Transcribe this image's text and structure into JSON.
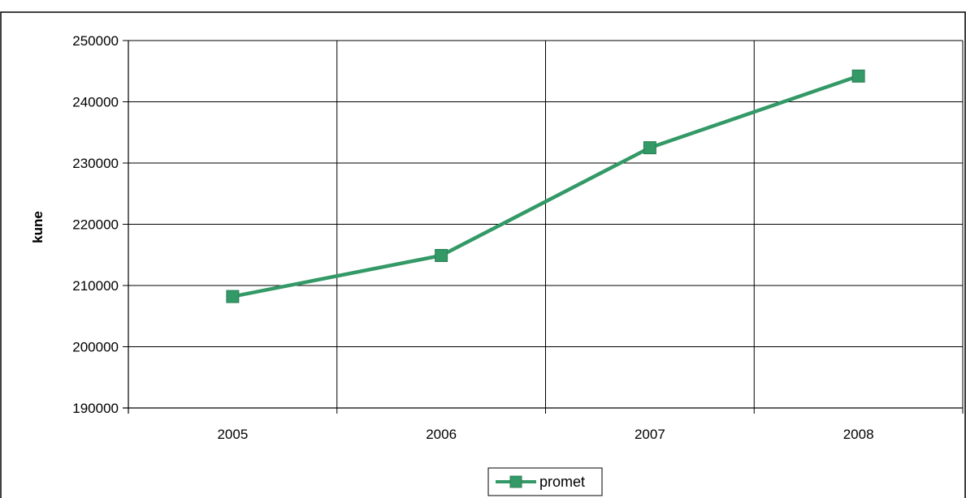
{
  "chart_data": {
    "type": "line",
    "categories": [
      "2005",
      "2006",
      "2007",
      "2008"
    ],
    "series": [
      {
        "name": "promet",
        "values": [
          208200,
          214900,
          232500,
          244200
        ],
        "color": "#339966"
      }
    ],
    "ylabel": "kune",
    "xlabel": "",
    "ylim": [
      190000,
      250000
    ],
    "yticks": [
      190000,
      200000,
      210000,
      220000,
      230000,
      240000,
      250000
    ],
    "grid": true,
    "legend_position": "bottom-center",
    "marker": "square"
  }
}
